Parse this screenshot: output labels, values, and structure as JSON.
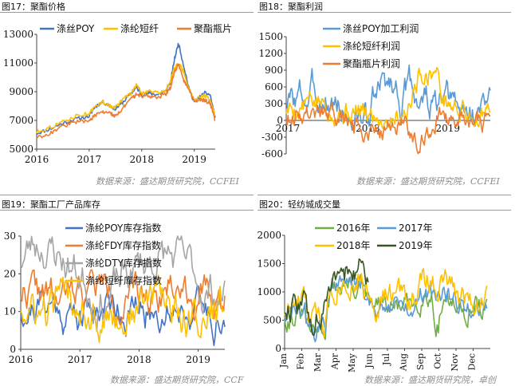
{
  "panels": [
    {
      "title": "图17：聚酯价格",
      "source": "数据来源：盛达期货研究院，CCFEI"
    },
    {
      "title": "图18：聚酯利润",
      "source": "数据来源：盛达期货研究院，CCFEI"
    },
    {
      "title": "图19：聚酯工厂产品库存",
      "source": "数据来源：盛达期货研究院，CCF"
    },
    {
      "title": "图20：轻纺城成交量",
      "source": "数据来源：盛达期货研究院，卓创"
    }
  ],
  "chart_data": [
    {
      "type": "line",
      "title": "",
      "ylim": [
        5000,
        13000
      ],
      "yticks": [
        "13000",
        "11000",
        "9000",
        "7000",
        "5000"
      ],
      "xticks": [
        "2016",
        "2017",
        "2018",
        "2019"
      ],
      "x": [
        2016.0,
        2016.25,
        2016.5,
        2016.75,
        2017.0,
        2017.1,
        2017.25,
        2017.4,
        2017.5,
        2017.65,
        2017.8,
        2017.9,
        2018.0,
        2018.15,
        2018.3,
        2018.45,
        2018.55,
        2018.62,
        2018.7,
        2018.8,
        2018.9,
        2019.0,
        2019.1,
        2019.2,
        2019.3,
        2019.4
      ],
      "series": [
        {
          "name": "涤丝POY",
          "color": "#4472c4",
          "values": [
            6100,
            6400,
            6800,
            7100,
            7300,
            7900,
            8300,
            8000,
            7800,
            8300,
            8900,
            9300,
            8800,
            8900,
            8800,
            9000,
            9700,
            11200,
            12400,
            10800,
            9200,
            8300,
            8600,
            8900,
            8800,
            7200
          ]
        },
        {
          "name": "涤纶短纤",
          "color": "#ffc000",
          "values": [
            6200,
            6500,
            6900,
            7300,
            7500,
            7900,
            8300,
            8000,
            7900,
            8500,
            8900,
            9500,
            8900,
            9100,
            8900,
            9100,
            9800,
            10600,
            11000,
            10400,
            9200,
            8400,
            8700,
            8700,
            8500,
            7300
          ]
        },
        {
          "name": "聚酯瓶片",
          "color": "#ed7d31",
          "values": [
            5800,
            6100,
            6600,
            6900,
            7000,
            7300,
            7600,
            7500,
            7300,
            7900,
            8500,
            8800,
            8700,
            8700,
            8600,
            8800,
            9300,
            10400,
            10900,
            9800,
            9200,
            8400,
            8400,
            8400,
            8200,
            7000
          ]
        }
      ]
    },
    {
      "type": "line",
      "title": "",
      "ylim": [
        -600,
        1500
      ],
      "yticks": [
        "1500",
        "1200",
        "900",
        "600",
        "300",
        "0",
        "-300",
        "-600"
      ],
      "xticks": [
        "2017",
        "2018",
        "2019"
      ],
      "series": [
        {
          "name": "涤丝POY加工利润",
          "color": "#5b9bd5"
        },
        {
          "name": "涤纶短纤利润",
          "color": "#ffc000"
        },
        {
          "name": "聚酯瓶片利润",
          "color": "#ed7d31"
        }
      ]
    },
    {
      "type": "line",
      "title": "",
      "ylim": [
        0,
        30
      ],
      "yticks": [
        "30",
        "20",
        "10",
        "0"
      ],
      "xticks": [
        "2016",
        "2017",
        "2018",
        "2019"
      ],
      "series": [
        {
          "name": "涤纶POY库存指数",
          "color": "#4472c4"
        },
        {
          "name": "涤纶FDY库存指数",
          "color": "#ed7d31"
        },
        {
          "name": "涤纶DTY库存指数",
          "color": "#a5a5a5"
        },
        {
          "name": "涤纶短纤库存指数",
          "color": "#ffc000"
        }
      ]
    },
    {
      "type": "line",
      "title": "",
      "ylim": [
        0,
        2000
      ],
      "yticks": [
        "2000",
        "1500",
        "1000",
        "500",
        "0"
      ],
      "xticks": [
        "Jan",
        "Feb",
        "Mar",
        "Apr",
        "May",
        "Jun",
        "Jul",
        "Aug",
        "Sep",
        "Oct",
        "Nov",
        "Dec"
      ],
      "series": [
        {
          "name": "2016年",
          "color": "#70ad47"
        },
        {
          "name": "2017年",
          "color": "#5b9bd5"
        },
        {
          "name": "2018年",
          "color": "#ffc000"
        },
        {
          "name": "2019年",
          "color": "#375623"
        }
      ]
    }
  ]
}
